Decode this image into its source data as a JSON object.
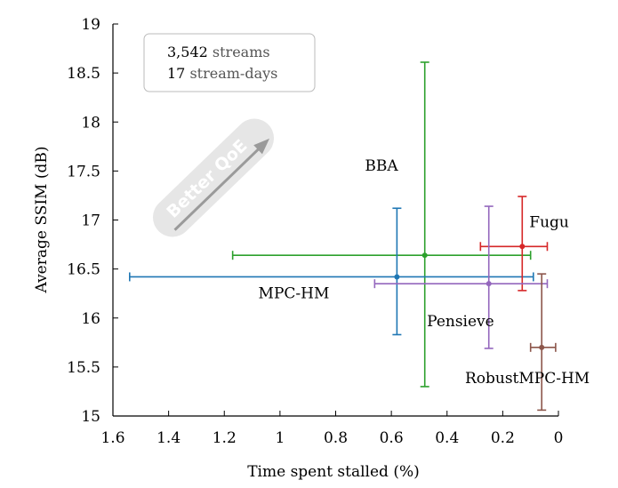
{
  "chart_data": {
    "type": "scatter",
    "title": "",
    "xlabel": "Time spent stalled (%)",
    "ylabel": "Average SSIM (dB)",
    "xlim": [
      1.6,
      0
    ],
    "x_reversed": true,
    "ylim": [
      15,
      19
    ],
    "x_ticks": [
      "1.6",
      "1.4",
      "1.2",
      "1",
      "0.8",
      "0.6",
      "0.4",
      "0.2",
      "0"
    ],
    "y_ticks": [
      "15",
      "15.5",
      "16",
      "16.5",
      "17",
      "17.5",
      "18",
      "18.5",
      "19"
    ],
    "grid": false,
    "annotation": {
      "line1_number": "3,542",
      "line1_unit": "streams",
      "line2_number": "17",
      "line2_unit": "stream-days"
    },
    "direction_label": "Better QoE",
    "series": [
      {
        "name": "BBA",
        "color": "#2ca02c",
        "x": 0.48,
        "y": 16.64,
        "x_err": [
          1.17,
          0.1
        ],
        "y_err": [
          15.3,
          18.61
        ]
      },
      {
        "name": "MPC-HM",
        "color": "#1f77b4",
        "x": 0.58,
        "y": 16.42,
        "x_err": [
          1.54,
          0.09
        ],
        "y_err": [
          15.83,
          17.12
        ]
      },
      {
        "name": "Fugu",
        "color": "#d62728",
        "x": 0.13,
        "y": 16.73,
        "x_err": [
          0.28,
          0.04
        ],
        "y_err": [
          16.28,
          17.24
        ]
      },
      {
        "name": "Pensieve",
        "color": "#9467bd",
        "x": 0.25,
        "y": 16.35,
        "x_err": [
          0.66,
          0.04
        ],
        "y_err": [
          15.69,
          17.14
        ]
      },
      {
        "name": "RobustMPC-HM",
        "color": "#8c564b",
        "x": 0.06,
        "y": 15.7,
        "x_err": [
          0.1,
          0.01
        ],
        "y_err": [
          15.06,
          16.45
        ]
      }
    ]
  }
}
